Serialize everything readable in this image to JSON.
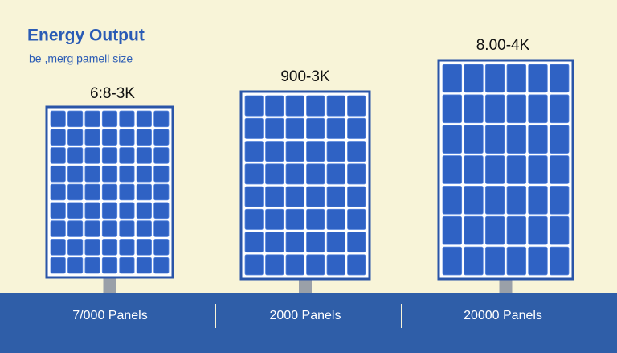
{
  "header": {
    "title": "Energy Output",
    "subtitle": "be ,merg pamell size"
  },
  "panels": [
    {
      "label": "6:8-3K",
      "caption": "7/000 Panels"
    },
    {
      "label": "900-3K",
      "caption": "2000 Panels"
    },
    {
      "label": "8.00-4K",
      "caption": "20000 Panels"
    }
  ]
}
